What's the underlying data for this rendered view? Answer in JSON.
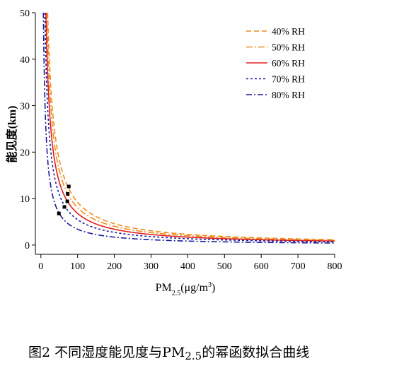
{
  "chart_data": {
    "type": "line",
    "xlabel_main": "PM",
    "xlabel_sub": "2.5",
    "xlabel_unit": "(μg/m",
    "xlabel_sup": "3",
    "xlabel_close": ")",
    "ylabel": "能见度(km)",
    "xlim": [
      -15,
      800
    ],
    "ylim": [
      -2,
      50
    ],
    "xticks": [
      0,
      100,
      200,
      300,
      400,
      500,
      600,
      700,
      800
    ],
    "yticks": [
      0,
      10,
      20,
      30,
      40,
      50
    ],
    "grid": false,
    "legend_position": "top-right",
    "series": [
      {
        "name": "40% RH",
        "color": "#f28c1c",
        "dash": "7,4",
        "coef": 920,
        "exp": 1.0,
        "markers": [
          [
            76,
            12.6
          ]
        ],
        "x": [
          10,
          20,
          50,
          76,
          100,
          200,
          300,
          400,
          600,
          800
        ],
        "values": [
          50,
          46,
          18.4,
          12.6,
          9.2,
          4.6,
          3.1,
          2.3,
          1.5,
          1.2
        ]
      },
      {
        "name": "50% RH",
        "color": "#f28c1c",
        "dash": "9,3,2,3",
        "coef": 805,
        "exp": 1.0,
        "markers": [
          [
            73,
            11.0
          ]
        ],
        "x": [
          10,
          20,
          50,
          73,
          100,
          200,
          300,
          400,
          600,
          800
        ],
        "values": [
          50,
          40,
          16.1,
          11.0,
          8.1,
          4.0,
          2.7,
          2.0,
          1.3,
          1.0
        ]
      },
      {
        "name": "60% RH",
        "color": "#e0201d",
        "dash": "",
        "coef": 680,
        "exp": 1.0,
        "markers": [
          [
            72,
            9.4
          ]
        ],
        "x": [
          10,
          20,
          50,
          72,
          100,
          200,
          300,
          400,
          600,
          800
        ],
        "values": [
          50,
          34,
          13.6,
          9.4,
          6.8,
          3.4,
          2.3,
          1.7,
          1.1,
          0.9
        ]
      },
      {
        "name": "70% RH",
        "color": "#1c1c9c",
        "dash": "3,3",
        "coef": 545,
        "exp": 1.0,
        "markers": [
          [
            64,
            8.2
          ]
        ],
        "x": [
          10,
          20,
          50,
          64,
          100,
          200,
          300,
          400,
          600,
          800
        ],
        "values": [
          50,
          27,
          10.9,
          8.2,
          5.5,
          2.7,
          1.8,
          1.4,
          0.9,
          0.7
        ]
      },
      {
        "name": "80% RH",
        "color": "#1c1c9c",
        "dash": "8,3,2,3",
        "coef": 340,
        "exp": 1.0,
        "markers": [
          [
            49,
            6.8
          ]
        ],
        "x": [
          7,
          20,
          49,
          100,
          200,
          300,
          400,
          600,
          800
        ],
        "values": [
          49,
          17,
          6.8,
          3.4,
          1.7,
          1.1,
          0.85,
          0.6,
          0.45
        ]
      }
    ]
  },
  "caption": {
    "prefix": "图2 不同湿度能见度与PM",
    "sub": "2.5",
    "suffix": "的幂函数拟合曲线"
  }
}
